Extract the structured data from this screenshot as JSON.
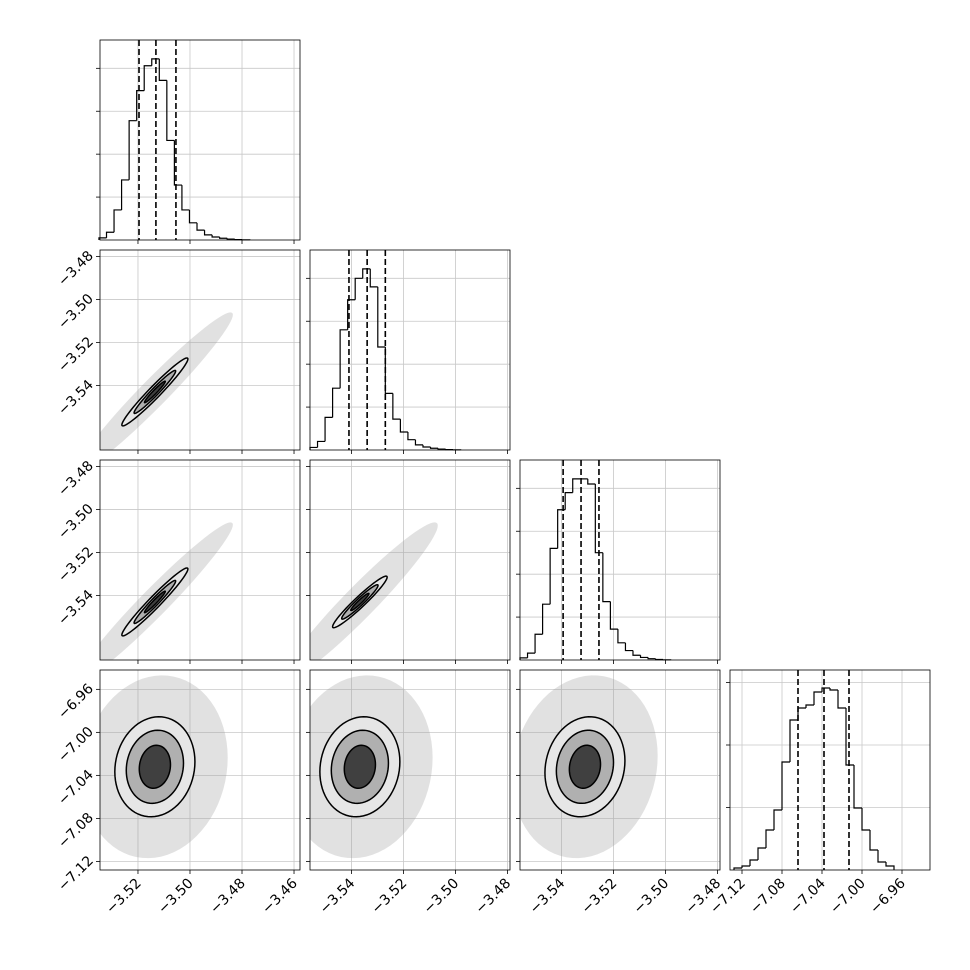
{
  "chart_data": {
    "type": "corner",
    "grid": true,
    "variables": [
      {
        "xlim": [
          -3.5346,
          -3.4577
        ],
        "xticks": [
          {
            "value": -3.52,
            "label": "−3.52"
          },
          {
            "value": -3.5,
            "label": "−3.50"
          },
          {
            "value": -3.48,
            "label": "−3.48"
          },
          {
            "value": -3.46,
            "label": "−3.46"
          }
        ],
        "hist": {
          "bins": [
            -3.535,
            -3.5321,
            -3.5292,
            -3.5263,
            -3.5234,
            -3.5205,
            -3.5176,
            -3.5147,
            -3.5118,
            -3.5089,
            -3.506,
            -3.5031,
            -3.5002,
            -3.4973,
            -3.4944,
            -3.4915,
            -3.4886,
            -3.4857,
            -3.4828,
            -3.4799,
            -3.477
          ],
          "counts": [
            25,
            90,
            350,
            700,
            1390,
            1740,
            2030,
            2110,
            1860,
            1160,
            640,
            350,
            200,
            115,
            60,
            35,
            20,
            10,
            5,
            2
          ],
          "ylim": [
            0,
            2330
          ],
          "yticks": [
            500,
            1000,
            1500,
            2000
          ]
        },
        "quantiles": [
          -3.5196,
          -3.5131,
          -3.5054
        ],
        "pairs": []
      },
      {
        "xlim": [
          -3.556,
          -3.479
        ],
        "ylim": [
          -3.57,
          -3.477
        ],
        "xticks": [
          {
            "value": -3.54,
            "label": "−3.54"
          },
          {
            "value": -3.52,
            "label": "−3.52"
          },
          {
            "value": -3.5,
            "label": "−3.50"
          },
          {
            "value": -3.48,
            "label": "−3.48"
          }
        ],
        "yticks": [
          {
            "value": -3.48,
            "label": "−3.48"
          },
          {
            "value": -3.5,
            "label": "−3.50"
          },
          {
            "value": -3.52,
            "label": "−3.52"
          },
          {
            "value": -3.54,
            "label": "−3.54"
          }
        ],
        "hist": {
          "bins": [
            -3.556,
            -3.5531,
            -3.5502,
            -3.5473,
            -3.5444,
            -3.5415,
            -3.5386,
            -3.5357,
            -3.5328,
            -3.5299,
            -3.527,
            -3.5241,
            -3.5212,
            -3.5183,
            -3.5154,
            -3.5125,
            -3.5096,
            -3.5067,
            -3.5038,
            -3.5009,
            -3.498
          ],
          "counts": [
            30,
            100,
            380,
            720,
            1400,
            1750,
            2000,
            2110,
            1900,
            1200,
            660,
            360,
            210,
            120,
            60,
            35,
            20,
            10,
            5,
            2
          ],
          "ylim": [
            0,
            2330
          ],
          "yticks": [
            500,
            1000,
            1500,
            2000
          ]
        },
        "quantiles": [
          -3.541,
          -3.534,
          -3.527
        ],
        "pairs": [
          {
            "cx": -3.5135,
            "cy": -3.543,
            "corr": 0.97,
            "cloud": [
              0.03,
              0.037
            ],
            "contours": [
              [
                0.0127,
                0.0158
              ],
              [
                0.008,
                0.01
              ],
              [
                0.004,
                0.005
              ]
            ]
          }
        ]
      },
      {
        "xlim": [
          -3.556,
          -3.479
        ],
        "ylim": [
          -3.57,
          -3.477
        ],
        "xticks": [
          {
            "value": -3.54,
            "label": "−3.54"
          },
          {
            "value": -3.52,
            "label": "−3.52"
          },
          {
            "value": -3.5,
            "label": "−3.50"
          },
          {
            "value": -3.48,
            "label": "−3.48"
          }
        ],
        "yticks": [
          {
            "value": -3.48,
            "label": "−3.48"
          },
          {
            "value": -3.5,
            "label": "−3.50"
          },
          {
            "value": -3.52,
            "label": "−3.52"
          },
          {
            "value": -3.54,
            "label": "−3.54"
          }
        ],
        "hist": {
          "bins": [
            -3.556,
            -3.5531,
            -3.5502,
            -3.5473,
            -3.5444,
            -3.5415,
            -3.5386,
            -3.5357,
            -3.5328,
            -3.5299,
            -3.527,
            -3.5241,
            -3.5212,
            -3.5183,
            -3.5154,
            -3.5125,
            -3.5096,
            -3.5067,
            -3.5038,
            -3.5009,
            -3.498
          ],
          "counts": [
            25,
            80,
            300,
            650,
            1300,
            1750,
            1950,
            2110,
            2110,
            2050,
            1250,
            680,
            360,
            200,
            110,
            55,
            30,
            15,
            6,
            2
          ],
          "ylim": [
            0,
            2330
          ],
          "yticks": [
            500,
            1000,
            1500,
            2000
          ]
        },
        "quantiles": [
          -3.5394,
          -3.5325,
          -3.5256
        ],
        "pairs": [
          {
            "cx": -3.5135,
            "cy": -3.543,
            "corr": 0.97,
            "cloud": [
              0.03,
              0.037
            ],
            "contours": [
              [
                0.0127,
                0.0158
              ],
              [
                0.008,
                0.01
              ],
              [
                0.004,
                0.005
              ]
            ]
          },
          {
            "cx": -3.5368,
            "cy": -3.543,
            "corr": 0.96,
            "cloud": [
              0.03,
              0.037
            ],
            "contours": [
              [
                0.0105,
                0.012
              ],
              [
                0.007,
                0.008
              ],
              [
                0.0035,
                0.004
              ]
            ]
          }
        ]
      },
      {
        "xlim": [
          -7.132,
          -6.932
        ],
        "ylim": [
          -7.128,
          -6.942
        ],
        "xticks": [
          {
            "value": -7.12,
            "label": "−7.12"
          },
          {
            "value": -7.08,
            "label": "−7.08"
          },
          {
            "value": -7.04,
            "label": "−7.04"
          },
          {
            "value": -7.0,
            "label": "−7.00"
          },
          {
            "value": -6.96,
            "label": "−6.96"
          }
        ],
        "yticks": [
          {
            "value": -6.96,
            "label": "−6.96"
          },
          {
            "value": -7.0,
            "label": "−7.00"
          },
          {
            "value": -7.04,
            "label": "−7.04"
          },
          {
            "value": -7.08,
            "label": "−7.08"
          },
          {
            "value": -7.12,
            "label": "−7.12"
          }
        ],
        "hist": {
          "bins": [
            -7.128,
            -7.12,
            -7.112,
            -7.104,
            -7.096,
            -7.088,
            -7.08,
            -7.072,
            -7.064,
            -7.056,
            -7.048,
            -7.04,
            -7.032,
            -7.024,
            -7.016,
            -7.008,
            -7.0,
            -6.992,
            -6.984,
            -6.976,
            -6.968
          ],
          "counts": [
            16,
            32,
            80,
            176,
            320,
            480,
            864,
            1200,
            1296,
            1320,
            1424,
            1456,
            1440,
            1296,
            840,
            496,
            320,
            160,
            64,
            32
          ],
          "ylim": [
            0,
            1600
          ],
          "yticks": [
            500,
            1000,
            1500
          ]
        },
        "quantiles": [
          -7.064,
          -7.038,
          -7.013
        ],
        "pairs": [
          {
            "cx": -3.5135,
            "cy": -7.032,
            "corr": 0.1,
            "cloud": [
              0.028,
              0.085
            ],
            "contours": [
              [
                0.0154,
                0.0465
              ],
              [
                0.011,
                0.034
              ],
              [
                0.006,
                0.02
              ]
            ]
          },
          {
            "cx": -3.5368,
            "cy": -7.032,
            "corr": 0.1,
            "cloud": [
              0.028,
              0.085
            ],
            "contours": [
              [
                0.0154,
                0.0465
              ],
              [
                0.011,
                0.034
              ],
              [
                0.006,
                0.02
              ]
            ]
          },
          {
            "cx": -3.531,
            "cy": -7.032,
            "corr": 0.12,
            "cloud": [
              0.028,
              0.085
            ],
            "contours": [
              [
                0.0154,
                0.0465
              ],
              [
                0.011,
                0.034
              ],
              [
                0.006,
                0.02
              ]
            ]
          }
        ]
      }
    ]
  }
}
